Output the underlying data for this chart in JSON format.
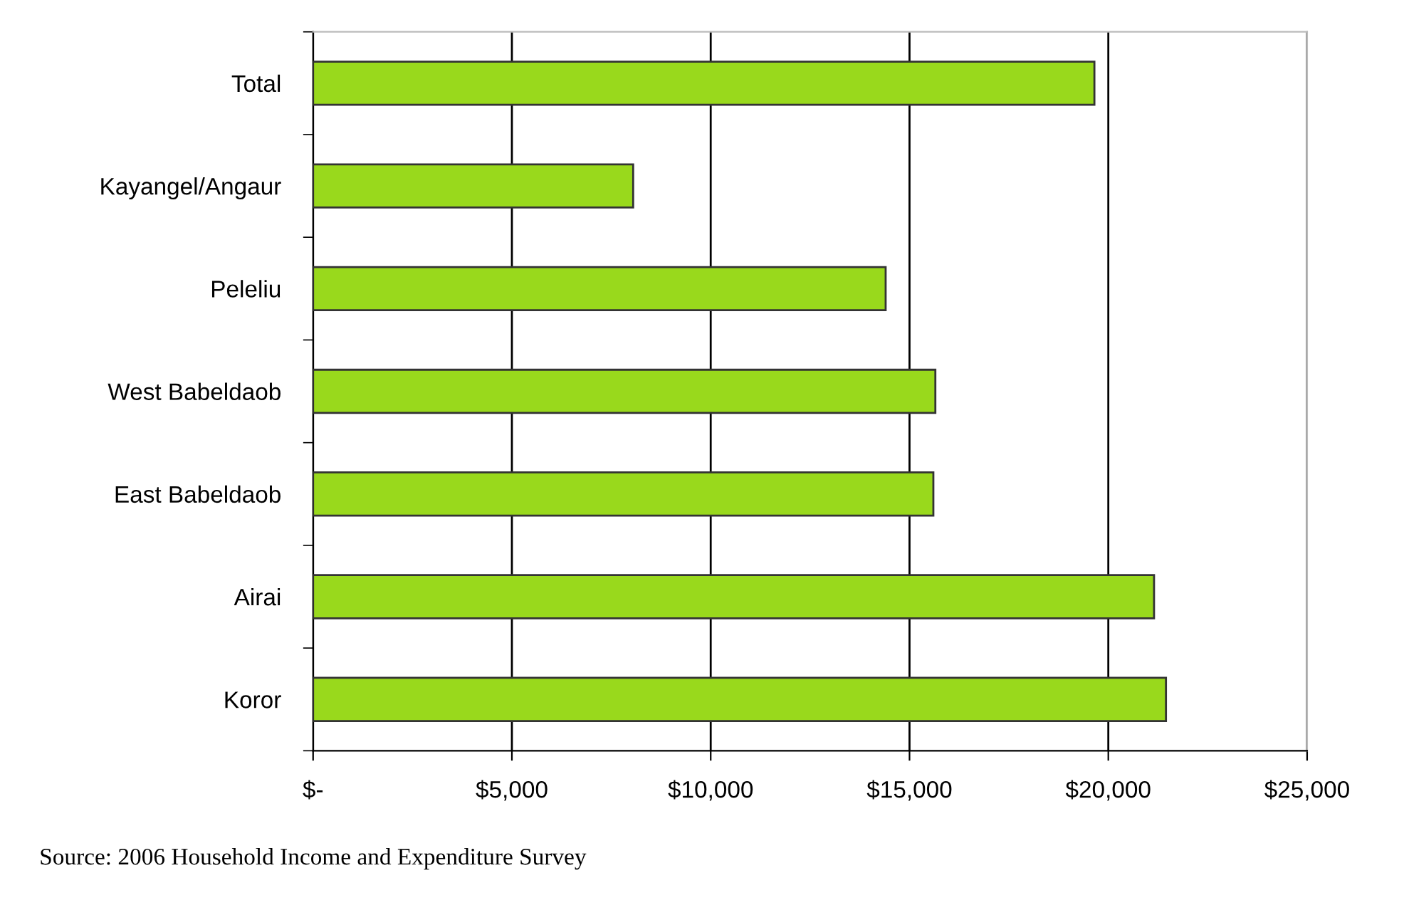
{
  "chart_data": {
    "type": "bar",
    "orientation": "horizontal",
    "categories": [
      "Total",
      "Kayangel/Angaur",
      "Peleliu",
      "West Babeldaob",
      "East Babeldaob",
      "Airai",
      "Koror"
    ],
    "values": [
      19650,
      8050,
      14400,
      15650,
      15600,
      21150,
      21450
    ],
    "color": "#99d91c",
    "xlim": [
      0,
      25000
    ],
    "xticks": [
      {
        "value": 0,
        "label": "$-"
      },
      {
        "value": 5000,
        "label": "$5,000"
      },
      {
        "value": 10000,
        "label": "$10,000"
      },
      {
        "value": 15000,
        "label": "$15,000"
      },
      {
        "value": 20000,
        "label": "$20,000"
      },
      {
        "value": 25000,
        "label": "$25,000"
      }
    ],
    "grid": "x",
    "annotations": [
      "Source: 2006 Household Income and Expenditure Survey"
    ]
  }
}
